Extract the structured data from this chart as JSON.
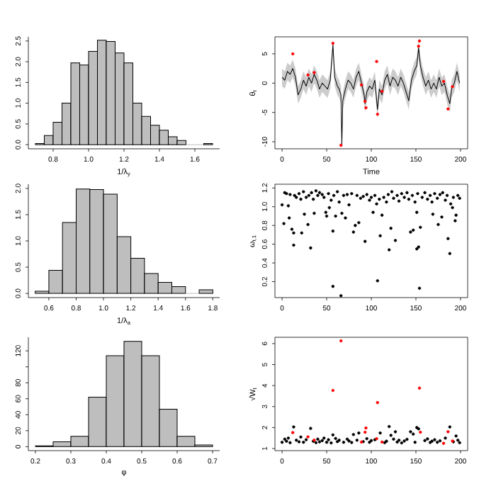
{
  "chart_data": [
    {
      "type": "histogram",
      "xlabel": "1/λ$_{y}$",
      "color": "#bebebe",
      "bins": [
        0.7,
        0.75,
        0.8,
        0.85,
        0.9,
        0.95,
        1.0,
        1.05,
        1.1,
        1.15,
        1.2,
        1.25,
        1.3,
        1.35,
        1.4,
        1.45,
        1.5,
        1.55,
        1.6,
        1.65,
        1.7
      ],
      "values": [
        0.03,
        0.22,
        0.54,
        1.0,
        1.97,
        1.92,
        2.25,
        2.52,
        2.49,
        2.21,
        1.97,
        1.0,
        0.68,
        0.47,
        0.35,
        0.19,
        0.1,
        0,
        0,
        0.03
      ],
      "xlim": [
        0.66,
        1.74
      ],
      "ylim": [
        -0.1,
        2.6
      ],
      "xticks": [
        0.8,
        {
          "value": 1.0,
          "label": "1.0"
        },
        1.2,
        1.4,
        1.6
      ],
      "yticks": [
        {
          "value": 0,
          "label": "0.0"
        },
        0.5,
        {
          "value": 1,
          "label": "1.0"
        },
        1.5,
        {
          "value": 2,
          "label": "2.0"
        },
        2.5
      ]
    },
    {
      "type": "line",
      "xlabel": "Time",
      "ylabel": "θ$_{t}$",
      "xlim": [
        -8,
        208
      ],
      "ylim": [
        -11.2,
        7.9
      ],
      "xticks": [
        0,
        50,
        100,
        150,
        200
      ],
      "yticks": [
        -10,
        -5,
        0,
        5
      ],
      "series": [
        {
          "type": "line",
          "color": "#000000",
          "marker": "none",
          "x": [
            0,
            3,
            6,
            9,
            12,
            15,
            18,
            21,
            24,
            27,
            30,
            33,
            36,
            39,
            42,
            45,
            48,
            51,
            54,
            57,
            59,
            62,
            64,
            66,
            67,
            68,
            71,
            74,
            77,
            80,
            83,
            86,
            89,
            92,
            93,
            95,
            98,
            101,
            104,
            106,
            107,
            109,
            112,
            115,
            118,
            121,
            124,
            127,
            130,
            133,
            136,
            139,
            142,
            145,
            148,
            151,
            153,
            155,
            158,
            161,
            164,
            167,
            170,
            173,
            176,
            179,
            182,
            185,
            188,
            190,
            193,
            196,
            199
          ],
          "values": [
            1,
            0.5,
            2,
            1.5,
            2.5,
            1,
            -2,
            -1,
            0.5,
            -0.5,
            1,
            0,
            1.5,
            0.5,
            -1,
            0,
            -0.5,
            -1,
            0.5,
            6.5,
            1,
            -0.5,
            -1,
            -2,
            -10.5,
            -3,
            -1,
            0.5,
            0,
            -1,
            1,
            2,
            0,
            -2,
            -3.5,
            -1.5,
            -0.5,
            -1,
            0.5,
            -3,
            -4.5,
            -1,
            -2,
            0.5,
            1.5,
            -0.5,
            1,
            0.5,
            -0.5,
            1,
            0,
            -1.5,
            -3,
            0.5,
            2,
            3,
            6,
            3,
            1,
            -0.5,
            0.5,
            -1,
            0,
            -1,
            1,
            -0.5,
            0,
            -2,
            -3.5,
            -1,
            0,
            2,
            0
          ],
          "lower": [
            -0.5,
            -1,
            0.5,
            0,
            1,
            -0.5,
            -3.5,
            -2.5,
            -1,
            -2,
            -0.5,
            -1.5,
            0,
            -1,
            -2.5,
            -1.5,
            -2,
            -2.5,
            -1,
            5,
            -0.5,
            -2,
            -2.5,
            -3.5,
            -11,
            -4.5,
            -2.5,
            -1,
            -1.5,
            -2.5,
            -0.5,
            0.5,
            -1.5,
            -3.5,
            -5,
            -3,
            -2,
            -2.5,
            -1,
            -4.5,
            -6,
            -2.5,
            -3.5,
            -1,
            0,
            -2,
            -0.5,
            -1,
            -2,
            -0.5,
            -1.5,
            -3,
            -4.5,
            -1,
            0.5,
            1.5,
            4.5,
            1.5,
            -0.5,
            -2,
            -1,
            -2.5,
            -1.5,
            -2.5,
            -0.5,
            -2,
            -1.5,
            -3.5,
            -5,
            -2.5,
            -1.5,
            0.5,
            -1.5
          ],
          "upper": [
            2.5,
            2,
            3.5,
            3,
            4,
            2.5,
            -0.5,
            0.5,
            2,
            1,
            2.5,
            1.5,
            3,
            2,
            0.5,
            1.5,
            1,
            0.5,
            2,
            7.5,
            2.5,
            1,
            0.5,
            -0.5,
            -9,
            -1.5,
            0.5,
            2,
            1.5,
            0.5,
            2.5,
            3.5,
            1.5,
            -0.5,
            -2,
            0,
            1,
            0.5,
            2,
            -1.5,
            -3,
            0.5,
            -0.5,
            2,
            3,
            1,
            2.5,
            2,
            1,
            2.5,
            1.5,
            0,
            -1.5,
            2,
            3.5,
            4.5,
            7.5,
            4.5,
            2.5,
            1,
            2,
            0.5,
            1.5,
            0.5,
            2.5,
            1,
            1.5,
            -0.5,
            -2,
            0.5,
            1.5,
            3.5,
            1.5
          ]
        },
        {
          "type": "scatter",
          "color": "#ff0000",
          "marker": "circle",
          "x": [
            12,
            29,
            36,
            57,
            66,
            89,
            93,
            94,
            106,
            107,
            112,
            153,
            154,
            181,
            186,
            191
          ],
          "values": [
            5.0,
            1.4,
            1.8,
            6.8,
            -10.6,
            -0.3,
            -3.1,
            -4.2,
            3.7,
            -5.3,
            -1.4,
            6.3,
            7.2,
            0.3,
            -4.4,
            -0.6
          ]
        }
      ]
    },
    {
      "type": "histogram",
      "xlabel": "1/λ$_{a}$",
      "color": "#bebebe",
      "bins": [
        0.5,
        0.6,
        0.7,
        0.8,
        0.9,
        1.0,
        1.1,
        1.2,
        1.3,
        1.4,
        1.5,
        1.6,
        1.7,
        1.8
      ],
      "values": [
        0.04,
        0.44,
        1.35,
        1.99,
        1.98,
        1.89,
        1.08,
        0.67,
        0.38,
        0.21,
        0.13,
        0,
        0.07
      ],
      "xlim": [
        0.45,
        1.85
      ],
      "ylim": [
        -0.08,
        2.08
      ],
      "xticks": [
        0.6,
        0.8,
        {
          "value": 1.0,
          "label": "1.0"
        },
        1.2,
        1.4,
        1.6,
        1.8
      ],
      "yticks": [
        {
          "value": 0,
          "label": "0.0"
        },
        0.5,
        {
          "value": 1,
          "label": "1.0"
        },
        1.5,
        {
          "value": 2,
          "label": "2.0"
        }
      ]
    },
    {
      "type": "scatter",
      "ylabel": "ω$_{t,1}$",
      "xlim": [
        -8,
        208
      ],
      "ylim": [
        0.03,
        1.24
      ],
      "color": "#000000",
      "marker": "circle",
      "xticks": [
        0,
        50,
        100,
        150,
        200
      ],
      "yticks": [
        0.2,
        0.4,
        0.6,
        0.8,
        {
          "value": 1,
          "label": "1.0"
        },
        1.2
      ],
      "x": [
        2,
        8,
        11,
        13,
        13,
        22,
        25,
        29,
        32,
        36,
        49,
        50,
        53,
        57,
        57,
        60,
        66,
        67,
        71,
        80,
        82,
        86,
        93,
        102,
        107,
        110,
        112,
        120,
        122,
        127,
        144,
        147,
        151,
        151,
        153,
        154,
        155,
        169,
        175,
        179,
        186,
        188,
        191,
        194,
        195,
        0,
        3,
        5,
        7,
        9,
        14,
        16,
        19,
        21,
        24,
        27,
        30,
        33,
        35,
        38,
        40,
        42,
        45,
        47,
        52,
        55,
        58,
        62,
        64,
        69,
        73,
        75,
        78,
        84,
        88,
        91,
        95,
        98,
        100,
        104,
        106,
        109,
        114,
        117,
        119,
        123,
        125,
        129,
        131,
        134,
        137,
        140,
        142,
        146,
        149,
        152,
        157,
        160,
        163,
        166,
        168,
        171,
        174,
        177,
        180,
        183,
        185,
        189,
        192,
        197,
        199
      ],
      "values": [
        0.82,
        0.88,
        0.76,
        0.72,
        0.59,
        0.72,
        0.92,
        0.81,
        0.56,
        0.93,
        0.94,
        0.9,
        0.99,
        0.74,
        0.15,
        0.9,
        0.05,
        0.93,
        0.88,
        0.73,
        0.8,
        0.83,
        0.63,
        0.94,
        0.21,
        0.69,
        0.91,
        0.54,
        0.77,
        0.64,
        0.73,
        0.75,
        0.94,
        0.55,
        0.57,
        0.13,
        0.78,
        0.92,
        0.81,
        0.89,
        0.66,
        0.5,
        0.99,
        0.85,
        0.91,
        1.02,
        1.15,
        1.14,
        1.01,
        1.13,
        1.12,
        1.1,
        1.14,
        1.08,
        1.16,
        1.1,
        1.12,
        1.15,
        1.08,
        1.17,
        1.12,
        1.15,
        1.13,
        1.1,
        1.14,
        1.07,
        1.12,
        1.16,
        1.05,
        1.12,
        1.13,
        1.02,
        1.14,
        1.12,
        1.09,
        1.11,
        1.13,
        1.07,
        1.1,
        1.12,
        1.03,
        1.08,
        1.1,
        1.05,
        1.13,
        1.16,
        1.09,
        1.12,
        1.06,
        1.14,
        1.1,
        1.15,
        1.08,
        1.12,
        1.05,
        1.14,
        1.1,
        1.15,
        1.08,
        1.12,
        1.05,
        1.14,
        1.09,
        1.13,
        1.15,
        1.07,
        1.12,
        1.03,
        1.1,
        1.12,
        1.09
      ]
    },
    {
      "type": "histogram",
      "xlabel": "φ",
      "color": "#bebebe",
      "bins": [
        0.2,
        0.25,
        0.3,
        0.35,
        0.4,
        0.45,
        0.5,
        0.55,
        0.6,
        0.65,
        0.7
      ],
      "values": [
        1,
        6,
        13,
        62,
        114,
        132,
        114,
        47,
        13,
        2
      ],
      "xlim": [
        0.18,
        0.72
      ],
      "ylim": [
        -5,
        137
      ],
      "xticks": [
        0.2,
        0.3,
        0.4,
        0.5,
        0.6,
        0.7
      ],
      "yticks": [
        0,
        20,
        40,
        60,
        80,
        {
          "value": 100,
          "label": null
        },
        120
      ]
    },
    {
      "type": "scatter",
      "ylabel": "√W$_{t}$",
      "xlim": [
        -8,
        208
      ],
      "ylim": [
        0.9,
        6.3
      ],
      "xticks": [
        0,
        50,
        100,
        150,
        200
      ],
      "yticks": [
        1,
        2,
        3,
        4,
        5,
        6
      ],
      "series": [
        {
          "type": "scatter",
          "color": "#000000",
          "marker": "circle",
          "x": [
            13,
            32,
            57,
            80,
            86,
            110,
            120,
            122,
            127,
            144,
            147,
            151,
            153,
            188,
            195,
            0,
            3,
            5,
            7,
            9,
            16,
            19,
            21,
            24,
            27,
            35,
            38,
            40,
            42,
            45,
            47,
            50,
            52,
            55,
            60,
            62,
            64,
            69,
            73,
            75,
            78,
            84,
            91,
            95,
            98,
            100,
            104,
            115,
            117,
            125,
            129,
            131,
            134,
            137,
            140,
            149,
            160,
            163,
            166,
            168,
            171,
            174,
            177,
            183,
            192,
            197,
            199
          ],
          "values": [
            2.03,
            1.96,
            1.65,
            1.67,
            1.74,
            1.74,
            2.05,
            1.63,
            1.8,
            1.8,
            1.69,
            2.0,
            1.94,
            2.03,
            1.6,
            1.3,
            1.45,
            1.35,
            1.5,
            1.28,
            1.4,
            1.32,
            1.55,
            1.3,
            1.42,
            1.35,
            1.28,
            1.45,
            1.32,
            1.38,
            1.5,
            1.3,
            1.42,
            1.27,
            1.48,
            1.33,
            1.4,
            1.3,
            1.45,
            1.36,
            1.29,
            1.4,
            1.33,
            1.47,
            1.3,
            1.38,
            1.42,
            1.28,
            1.35,
            1.45,
            1.31,
            1.4,
            1.27,
            1.36,
            1.44,
            1.3,
            1.38,
            1.46,
            1.29,
            1.35,
            1.42,
            1.3,
            1.37,
            1.5,
            1.32,
            1.4,
            1.28
          ]
        },
        {
          "type": "scatter",
          "color": "#ff0000",
          "marker": "circle",
          "x": [
            12,
            29,
            36,
            57,
            66,
            89,
            93,
            94,
            106,
            107,
            112,
            154,
            155,
            181,
            186,
            191
          ],
          "values": [
            1.76,
            1.56,
            1.4,
            3.77,
            6.13,
            1.31,
            1.78,
            1.98,
            1.47,
            3.19,
            1.31,
            3.88,
            1.78,
            1.25,
            1.8,
            1.36
          ]
        }
      ]
    }
  ]
}
